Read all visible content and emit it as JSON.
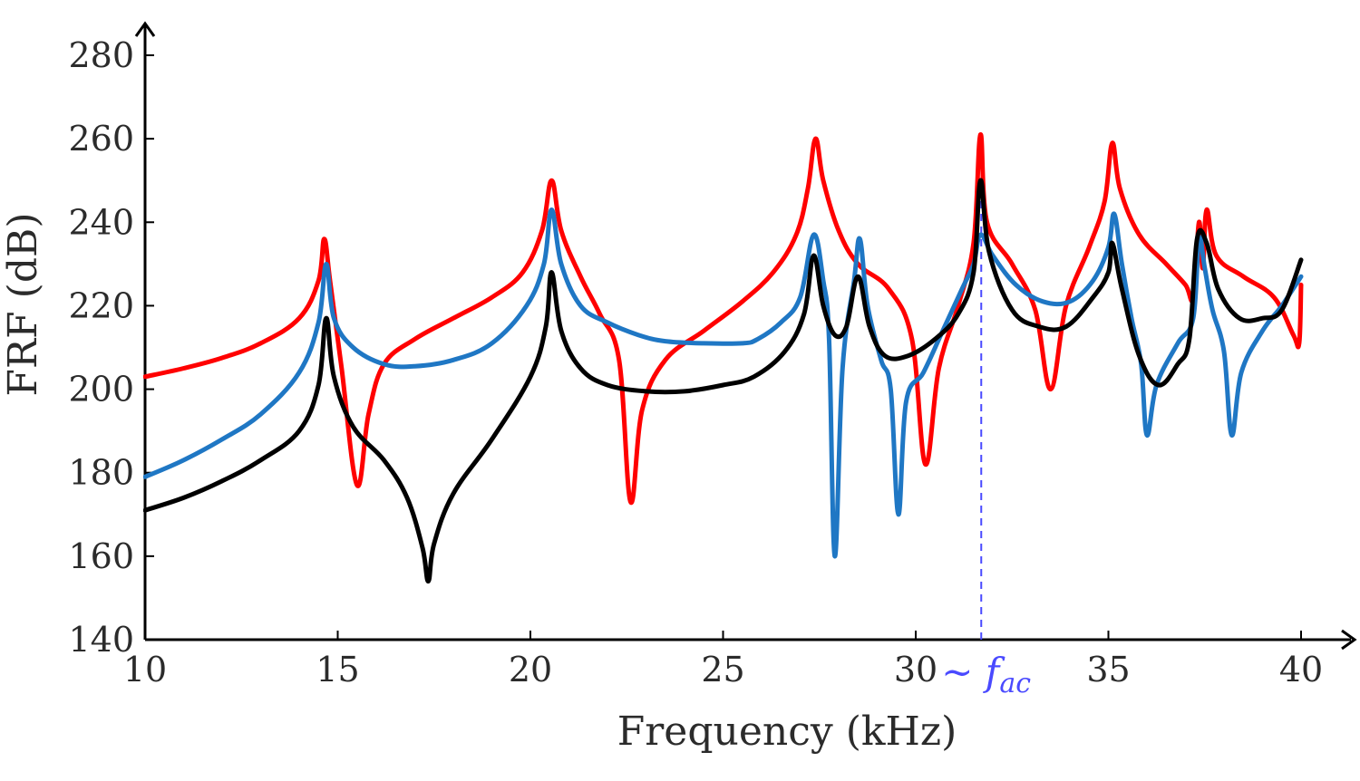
{
  "chart_data": {
    "type": "line",
    "title": "",
    "xlabel": "Frequency (kHz)",
    "ylabel": "FRF (dB)",
    "xlim": [
      10,
      40
    ],
    "ylim": [
      140,
      280
    ],
    "xticks": [
      10,
      15,
      20,
      25,
      30,
      35,
      40
    ],
    "yticks": [
      140,
      160,
      180,
      200,
      220,
      240,
      260,
      280
    ],
    "grid": false,
    "annotation": {
      "type": "vline",
      "x": 31.7,
      "prefix": "~",
      "label": "f",
      "subscript": "ac",
      "color": "#4a4aff"
    },
    "series": [
      {
        "name": "red",
        "color": "#ff0000",
        "points": [
          [
            10,
            203
          ],
          [
            11,
            205
          ],
          [
            12,
            207.5
          ],
          [
            13,
            211
          ],
          [
            14,
            217
          ],
          [
            14.5,
            226
          ],
          [
            14.65,
            236
          ],
          [
            14.8,
            226
          ],
          [
            15.1,
            205
          ],
          [
            15.5,
            177
          ],
          [
            15.8,
            194
          ],
          [
            16.2,
            206
          ],
          [
            17,
            212
          ],
          [
            18,
            217
          ],
          [
            19,
            222
          ],
          [
            19.8,
            228
          ],
          [
            20.3,
            238
          ],
          [
            20.55,
            250
          ],
          [
            20.8,
            238
          ],
          [
            21.3,
            227
          ],
          [
            21.8,
            218
          ],
          [
            22.3,
            207
          ],
          [
            22.6,
            173
          ],
          [
            22.9,
            195
          ],
          [
            23.5,
            207
          ],
          [
            24.5,
            214
          ],
          [
            25.5,
            221
          ],
          [
            26.3,
            228
          ],
          [
            26.9,
            237
          ],
          [
            27.2,
            248
          ],
          [
            27.4,
            260
          ],
          [
            27.6,
            250
          ],
          [
            28,
            238
          ],
          [
            28.5,
            230
          ],
          [
            29.3,
            224
          ],
          [
            29.9,
            212
          ],
          [
            30.25,
            182
          ],
          [
            30.6,
            205
          ],
          [
            31.1,
            220
          ],
          [
            31.5,
            235
          ],
          [
            31.68,
            261
          ],
          [
            31.85,
            240
          ],
          [
            32.5,
            230
          ],
          [
            33.1,
            219
          ],
          [
            33.5,
            200
          ],
          [
            33.9,
            220
          ],
          [
            34.5,
            234
          ],
          [
            34.9,
            245
          ],
          [
            35.1,
            259
          ],
          [
            35.3,
            248
          ],
          [
            35.8,
            237
          ],
          [
            36.5,
            230
          ],
          [
            37,
            225
          ],
          [
            37.2,
            222
          ],
          [
            37.35,
            240
          ],
          [
            37.45,
            229
          ],
          [
            37.55,
            243
          ],
          [
            37.8,
            232
          ],
          [
            38.5,
            227
          ],
          [
            39.3,
            222
          ],
          [
            39.8,
            213
          ],
          [
            39.95,
            211
          ],
          [
            40,
            225
          ]
        ]
      },
      {
        "name": "blue",
        "color": "#1f77c4",
        "points": [
          [
            10,
            179
          ],
          [
            11,
            183
          ],
          [
            12,
            188
          ],
          [
            13,
            194
          ],
          [
            14,
            204
          ],
          [
            14.5,
            216
          ],
          [
            14.7,
            230
          ],
          [
            14.9,
            217
          ],
          [
            15.4,
            210
          ],
          [
            16.2,
            206
          ],
          [
            17,
            205.5
          ],
          [
            18,
            207
          ],
          [
            19,
            211
          ],
          [
            19.9,
            220
          ],
          [
            20.35,
            230
          ],
          [
            20.55,
            243
          ],
          [
            20.8,
            230
          ],
          [
            21.3,
            220
          ],
          [
            22,
            216
          ],
          [
            22.8,
            213
          ],
          [
            23.5,
            211.5
          ],
          [
            24.5,
            211
          ],
          [
            25.5,
            211
          ],
          [
            25.9,
            212
          ],
          [
            26.5,
            216
          ],
          [
            27,
            222
          ],
          [
            27.35,
            237
          ],
          [
            27.6,
            226
          ],
          [
            27.75,
            212
          ],
          [
            27.9,
            160
          ],
          [
            28.1,
            205
          ],
          [
            28.4,
            226
          ],
          [
            28.55,
            236
          ],
          [
            28.75,
            220
          ],
          [
            29.1,
            207
          ],
          [
            29.35,
            200
          ],
          [
            29.55,
            170
          ],
          [
            29.75,
            197
          ],
          [
            30.2,
            204
          ],
          [
            30.7,
            214
          ],
          [
            31.2,
            224
          ],
          [
            31.5,
            230
          ],
          [
            31.68,
            237
          ],
          [
            32,
            232
          ],
          [
            32.6,
            225
          ],
          [
            33.3,
            221
          ],
          [
            34,
            221
          ],
          [
            34.6,
            226
          ],
          [
            35,
            234
          ],
          [
            35.15,
            242
          ],
          [
            35.35,
            230
          ],
          [
            35.6,
            217
          ],
          [
            35.85,
            206
          ],
          [
            36,
            189
          ],
          [
            36.25,
            201
          ],
          [
            36.8,
            211
          ],
          [
            37.2,
            217
          ],
          [
            37.35,
            236
          ],
          [
            37.5,
            229
          ],
          [
            37.7,
            219
          ],
          [
            38,
            209
          ],
          [
            38.2,
            189
          ],
          [
            38.45,
            204
          ],
          [
            39,
            214
          ],
          [
            39.5,
            220
          ],
          [
            40,
            227
          ]
        ]
      },
      {
        "name": "black",
        "color": "#000000",
        "points": [
          [
            10,
            171
          ],
          [
            11,
            174
          ],
          [
            12,
            178
          ],
          [
            13,
            183
          ],
          [
            14,
            190
          ],
          [
            14.5,
            201
          ],
          [
            14.7,
            217
          ],
          [
            14.9,
            203
          ],
          [
            15.4,
            191
          ],
          [
            16.2,
            183
          ],
          [
            16.8,
            174
          ],
          [
            17.2,
            162
          ],
          [
            17.35,
            154
          ],
          [
            17.5,
            163
          ],
          [
            18,
            175
          ],
          [
            19,
            188
          ],
          [
            20,
            203
          ],
          [
            20.4,
            215
          ],
          [
            20.55,
            228
          ],
          [
            20.8,
            214
          ],
          [
            21.3,
            205
          ],
          [
            22,
            201
          ],
          [
            23,
            199.5
          ],
          [
            24,
            199.5
          ],
          [
            25,
            201
          ],
          [
            25.8,
            203
          ],
          [
            26.6,
            209
          ],
          [
            27.1,
            218
          ],
          [
            27.35,
            232
          ],
          [
            27.6,
            220
          ],
          [
            27.9,
            213
          ],
          [
            28.2,
            215
          ],
          [
            28.5,
            227
          ],
          [
            28.8,
            215
          ],
          [
            29.2,
            208
          ],
          [
            29.8,
            208
          ],
          [
            30.5,
            212
          ],
          [
            31.1,
            218
          ],
          [
            31.5,
            228
          ],
          [
            31.68,
            250
          ],
          [
            31.9,
            233
          ],
          [
            32.5,
            219
          ],
          [
            33.2,
            215
          ],
          [
            33.9,
            215
          ],
          [
            34.6,
            222
          ],
          [
            35,
            228
          ],
          [
            35.1,
            235
          ],
          [
            35.35,
            224
          ],
          [
            35.8,
            208
          ],
          [
            36.3,
            201
          ],
          [
            36.8,
            206
          ],
          [
            37.1,
            212
          ],
          [
            37.3,
            236
          ],
          [
            37.55,
            235
          ],
          [
            37.85,
            224
          ],
          [
            38.4,
            217
          ],
          [
            39,
            217
          ],
          [
            39.5,
            219
          ],
          [
            40,
            231
          ]
        ]
      }
    ]
  }
}
